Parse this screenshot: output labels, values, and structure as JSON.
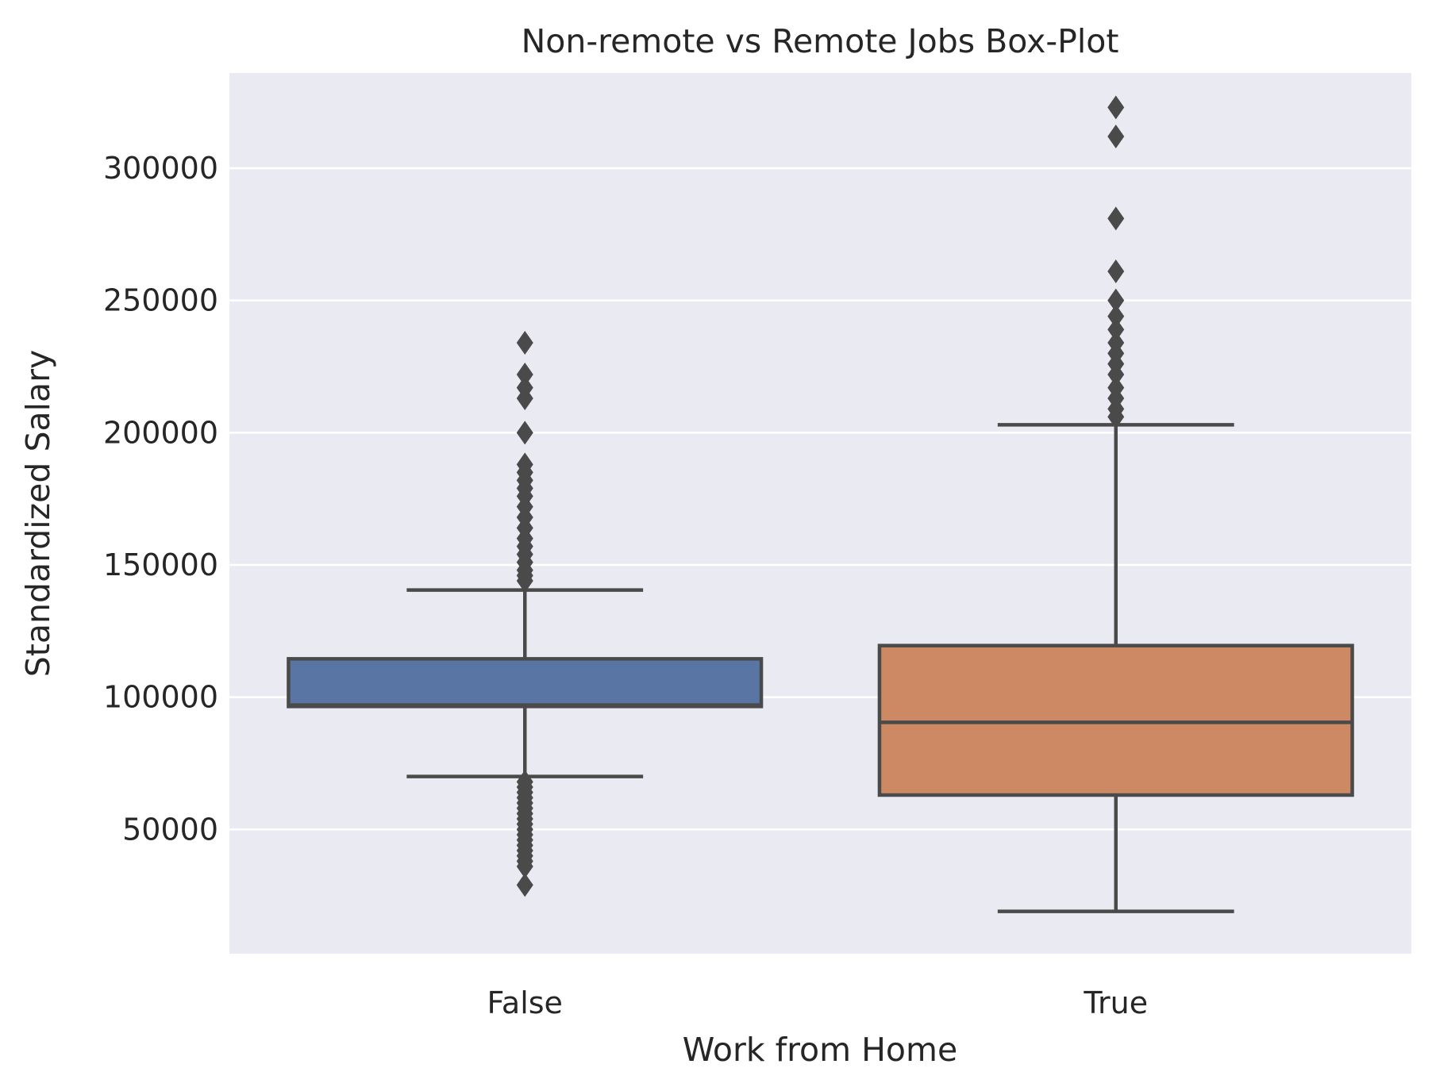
{
  "chart_data": {
    "type": "box",
    "title": "Non-remote vs Remote Jobs Box-Plot",
    "xlabel": "Work from Home",
    "ylabel": "Standardized Salary",
    "ylim": [
      3000,
      336000
    ],
    "yticks": [
      50000,
      100000,
      150000,
      200000,
      250000,
      300000
    ],
    "ytick_labels": [
      "50000",
      "100000",
      "150000",
      "200000",
      "250000",
      "300000"
    ],
    "grid": true,
    "background": "#eaeaf2",
    "box_edge_color": "#4a4a4a",
    "categories": [
      "False",
      "True"
    ],
    "boxes": [
      {
        "category": "False",
        "color": "#5975a4",
        "whisker_low": 70000,
        "q1": 96500,
        "median": 97000,
        "q3": 114500,
        "whisker_high": 140500,
        "outliers": [
          234000,
          222000,
          217000,
          213000,
          200000,
          188000,
          185000,
          182000,
          179000,
          176000,
          172000,
          168000,
          164000,
          160000,
          157000,
          154000,
          151000,
          148000,
          146000,
          144000,
          68000,
          66000,
          64000,
          62000,
          60000,
          58000,
          56000,
          54000,
          52000,
          50000,
          48000,
          46000,
          44000,
          42000,
          40000,
          38000,
          36000,
          29000
        ]
      },
      {
        "category": "True",
        "color": "#cc8963",
        "whisker_low": 19000,
        "q1": 63000,
        "median": 90500,
        "q3": 119500,
        "whisker_high": 203000,
        "outliers": [
          323000,
          312000,
          281000,
          261000,
          250000,
          244000,
          239000,
          234000,
          230000,
          226000,
          222000,
          217000,
          213000,
          209000,
          206000
        ]
      }
    ]
  }
}
